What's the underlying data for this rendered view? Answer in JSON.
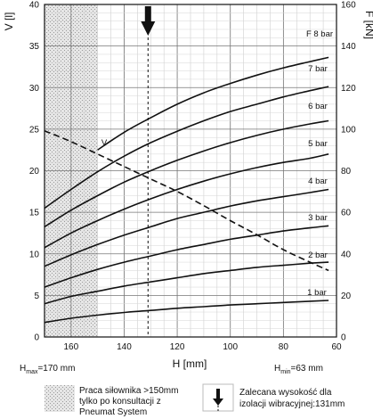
{
  "chart_data": {
    "type": "line",
    "title": "",
    "xlabel": "H [mm]",
    "ylabel_left": "V [l]",
    "ylabel_right": "F [kN]",
    "xlim": [
      170,
      60
    ],
    "ylim_left": [
      0,
      40
    ],
    "ylim_right": [
      0,
      160
    ],
    "x_ticks": [
      160,
      140,
      120,
      100,
      80,
      60
    ],
    "y_left_ticks": [
      0,
      5,
      10,
      15,
      20,
      25,
      30,
      35,
      40
    ],
    "y_right_ticks": [
      0,
      20,
      40,
      60,
      80,
      100,
      120,
      140,
      160
    ],
    "grid": true,
    "x": [
      170,
      160,
      150,
      140,
      130,
      120,
      110,
      100,
      90,
      80,
      70,
      63
    ],
    "series": [
      {
        "name": "1 bar",
        "axis": "right",
        "values": [
          7,
          9,
          10.5,
          11.8,
          12.8,
          13.8,
          14.6,
          15.4,
          16,
          16.6,
          17.2,
          17.6
        ],
        "line_style": "solid"
      },
      {
        "name": "2 bar",
        "axis": "right",
        "values": [
          16,
          19.5,
          22,
          24.5,
          26.5,
          28.5,
          30.5,
          32,
          33.5,
          34.5,
          35.5,
          36
        ],
        "line_style": "solid"
      },
      {
        "name": "3 bar",
        "axis": "right",
        "values": [
          24,
          28.5,
          32.5,
          36,
          39,
          42,
          44.5,
          47,
          49,
          51,
          52.5,
          53.5
        ],
        "line_style": "solid"
      },
      {
        "name": "4 bar",
        "axis": "right",
        "values": [
          34,
          39.5,
          44.5,
          49,
          53,
          57,
          60,
          63,
          65.5,
          67.5,
          69.5,
          71
        ],
        "line_style": "solid"
      },
      {
        "name": "5 bar",
        "axis": "right",
        "values": [
          43,
          50,
          56,
          61.5,
          66.5,
          71,
          75,
          78.5,
          81.5,
          84,
          86,
          88
        ],
        "line_style": "solid"
      },
      {
        "name": "6 bar",
        "axis": "right",
        "values": [
          53,
          61,
          68,
          74.5,
          80,
          85,
          89.5,
          93.5,
          97,
          100,
          102.5,
          104
        ],
        "line_style": "solid"
      },
      {
        "name": "7 bar",
        "axis": "right",
        "values": [
          62,
          71,
          79.5,
          87,
          93.5,
          99,
          104,
          108.5,
          112,
          115.5,
          118.5,
          120.5
        ],
        "line_style": "solid"
      },
      {
        "name": "F 8 bar",
        "axis": "right",
        "values": [
          null,
          null,
          90,
          98.5,
          105.5,
          112,
          117.5,
          122,
          126,
          129.5,
          132.5,
          134.5
        ],
        "line_style": "solid"
      },
      {
        "name": "V",
        "axis": "left",
        "values": [
          24.8,
          23.5,
          22,
          20.5,
          19,
          17.5,
          15.8,
          14,
          12.3,
          10.5,
          9,
          8
        ],
        "line_style": "dashed"
      }
    ],
    "annotations": {
      "h_max": {
        "base": "H",
        "sub": "max",
        "rest": "=170 mm"
      },
      "h_min": {
        "base": "H",
        "sub": "min",
        "rest": "=63 mm"
      },
      "recommended_height_mm": 131,
      "shaded_region_x": [
        170,
        150
      ]
    },
    "legend": {
      "hatched_text": [
        "Praca siłownika >150mm",
        "tylko po konsultacji z",
        "Pneumat System"
      ],
      "arrow_text": [
        "Zalecana wysokość dla",
        "izolacji wibracyjnej:131mm"
      ]
    }
  }
}
